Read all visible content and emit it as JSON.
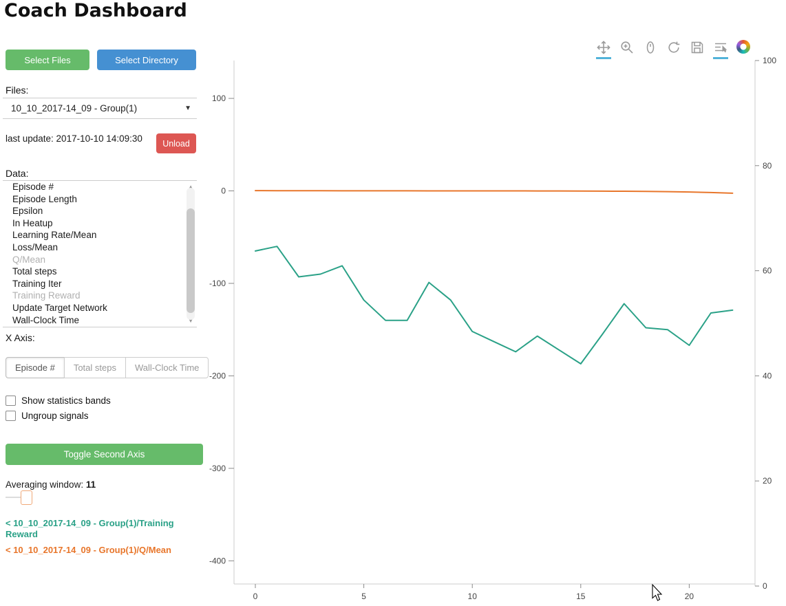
{
  "title": "Coach Dashboard",
  "sidebar": {
    "select_files_label": "Select Files",
    "select_directory_label": "Select Directory",
    "files_label": "Files:",
    "files_selected": "10_10_2017-14_09 - Group(1)",
    "last_update": "last update: 2017-10-10 14:09:30",
    "unload_label": "Unload",
    "data_label": "Data:",
    "data_items": [
      {
        "label": "Episode #",
        "selected": false
      },
      {
        "label": "Episode Length",
        "selected": false
      },
      {
        "label": "Epsilon",
        "selected": false
      },
      {
        "label": "In Heatup",
        "selected": false
      },
      {
        "label": "Learning Rate/Mean",
        "selected": false
      },
      {
        "label": "Loss/Mean",
        "selected": false
      },
      {
        "label": "Q/Mean",
        "selected": true
      },
      {
        "label": "Total steps",
        "selected": false
      },
      {
        "label": "Training Iter",
        "selected": false
      },
      {
        "label": "Training Reward",
        "selected": true
      },
      {
        "label": "Update Target Network",
        "selected": false
      },
      {
        "label": "Wall-Clock Time",
        "selected": false
      }
    ],
    "x_axis_label": "X Axis:",
    "x_axis_options": [
      "Episode #",
      "Total steps",
      "Wall-Clock Time"
    ],
    "x_axis_active": "Episode #",
    "checkboxes": [
      {
        "label": "Show statistics bands",
        "checked": false
      },
      {
        "label": "Ungroup signals",
        "checked": false
      }
    ],
    "toggle_second_axis_label": "Toggle Second Axis",
    "averaging_label": "Averaging window:",
    "averaging_value": "11",
    "legend": [
      {
        "text": "< 10_10_2017-14_09 - Group(1)/Training Reward",
        "color": "#2aa187"
      },
      {
        "text": "< 10_10_2017-14_09 - Group(1)/Q/Mean",
        "color": "#e8762b"
      }
    ]
  },
  "chart_toolbar": {
    "icons": [
      "pan",
      "box-zoom",
      "wheel-zoom",
      "reset",
      "save",
      "hover",
      "bokeh-logo"
    ],
    "active": [
      "pan",
      "hover"
    ],
    "active_color": "#52b3d9"
  },
  "chart_data": {
    "type": "line",
    "title": "",
    "xlabel": "",
    "ylabel": "",
    "grid": false,
    "x_ticks": [
      0,
      5,
      10,
      15,
      20
    ],
    "left_y_ticks": [
      100,
      0,
      -100,
      -200,
      -300,
      -400
    ],
    "right_y_ticks": [
      100,
      80,
      60,
      40,
      20,
      0
    ],
    "x": [
      0,
      1,
      2,
      3,
      4,
      5,
      6,
      7,
      8,
      9,
      10,
      11,
      12,
      13,
      14,
      15,
      16,
      17,
      18,
      19,
      20,
      21,
      22
    ],
    "series": [
      {
        "name": "10_10_2017-14_09 - Group(1)/Training Reward",
        "axis": "left",
        "color": "#2aa187",
        "values": [
          -65,
          -60,
          -93,
          -90,
          -81,
          -118,
          -140,
          -140,
          -99,
          -118,
          -152,
          -163,
          -174,
          -157,
          -172,
          -187,
          -155,
          -122,
          -148,
          -150,
          -167,
          -132,
          -129
        ]
      },
      {
        "name": "10_10_2017-14_09 - Group(1)/Q/Mean",
        "axis": "left",
        "color": "#e8762b",
        "values": [
          0.3,
          0.2,
          0.2,
          0.2,
          0.1,
          0.1,
          0.1,
          0.1,
          0,
          0,
          0,
          0,
          0,
          -0.1,
          -0.1,
          -0.2,
          -0.3,
          -0.4,
          -0.5,
          -0.8,
          -1.2,
          -1.8,
          -2.5
        ]
      }
    ],
    "ylim_left": [
      -430,
      140
    ],
    "ylim_right": [
      0,
      100
    ],
    "legend_position": "sidebar"
  }
}
